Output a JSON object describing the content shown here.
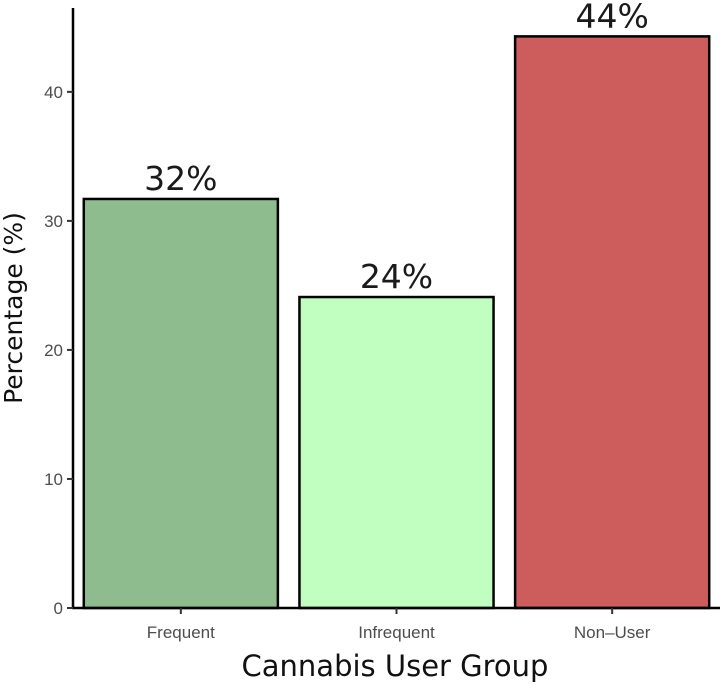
{
  "chart_data": {
    "type": "bar",
    "categories": [
      "Frequent",
      "Infrequent",
      "Non–User"
    ],
    "values": [
      31.7,
      24.1,
      44.3
    ],
    "data_labels": [
      "32%",
      "24%",
      "44%"
    ],
    "colors": [
      "#8fbc8f",
      "#c1ffc1",
      "#cd5c5c"
    ],
    "title": "",
    "xlabel": "Cannabis User Group",
    "ylabel": "Percentage (%)",
    "ylim": [
      0,
      46.5
    ],
    "yticks": [
      0,
      10,
      20,
      30,
      40
    ],
    "grid": false,
    "legend": "none"
  }
}
